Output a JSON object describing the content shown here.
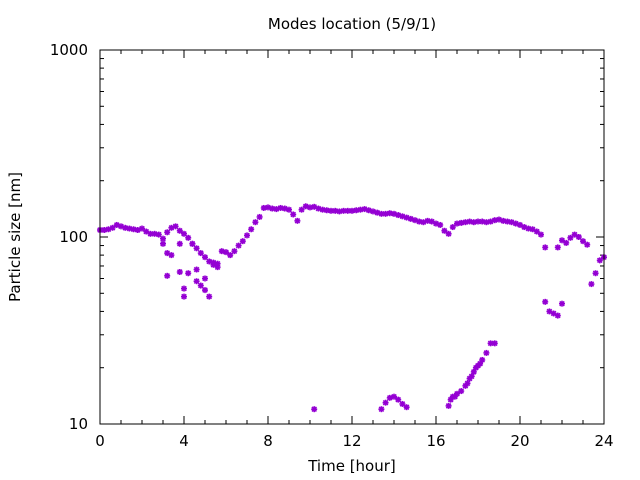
{
  "chart_data": {
    "type": "scatter",
    "title": "Modes location (5/9/1)",
    "xlabel": "Time [hour]",
    "ylabel": "Particle size [nm]",
    "xlim": [
      0,
      24
    ],
    "ylim": [
      10,
      1000
    ],
    "y_scale": "log",
    "x_ticks": [
      0,
      4,
      8,
      12,
      16,
      20,
      24
    ],
    "x_tick_labels": [
      "0",
      "4",
      "8",
      "12",
      "16",
      "20",
      "24"
    ],
    "y_ticks": [
      10,
      100,
      1000
    ],
    "y_tick_labels": [
      "10",
      "100",
      "1000"
    ],
    "grid": false,
    "legend": "none",
    "marker_color": "#9400d3",
    "marker": "asterisk",
    "series": [
      {
        "points": [
          [
            0.0,
            109
          ],
          [
            0.2,
            109
          ],
          [
            0.4,
            110
          ],
          [
            0.6,
            112
          ],
          [
            0.8,
            116
          ],
          [
            1.0,
            114
          ],
          [
            1.2,
            112
          ],
          [
            1.4,
            111
          ],
          [
            1.6,
            110
          ],
          [
            1.8,
            109
          ],
          [
            2.0,
            111
          ],
          [
            2.2,
            107
          ],
          [
            2.4,
            104
          ],
          [
            2.6,
            104
          ],
          [
            2.8,
            103
          ],
          [
            3.0,
            98
          ],
          [
            3.2,
            106
          ],
          [
            3.4,
            112
          ],
          [
            3.6,
            114
          ],
          [
            3.8,
            108
          ],
          [
            4.0,
            104
          ],
          [
            4.2,
            99
          ],
          [
            4.4,
            92
          ],
          [
            4.6,
            87
          ],
          [
            4.8,
            82
          ],
          [
            5.0,
            78
          ],
          [
            5.2,
            74
          ],
          [
            5.4,
            71
          ],
          [
            5.6,
            72
          ],
          [
            5.8,
            84
          ],
          [
            6.0,
            83
          ],
          [
            6.2,
            80
          ],
          [
            6.4,
            84
          ],
          [
            6.6,
            90
          ],
          [
            6.8,
            95
          ],
          [
            7.0,
            102
          ],
          [
            7.2,
            110
          ],
          [
            7.4,
            120
          ],
          [
            7.6,
            128
          ],
          [
            7.8,
            143
          ],
          [
            8.0,
            144
          ],
          [
            8.2,
            142
          ],
          [
            8.4,
            141
          ],
          [
            8.6,
            143
          ],
          [
            8.8,
            142
          ],
          [
            9.0,
            140
          ],
          [
            9.2,
            132
          ],
          [
            9.4,
            122
          ],
          [
            9.6,
            140
          ],
          [
            9.8,
            146
          ],
          [
            10.0,
            144
          ],
          [
            10.2,
            145
          ],
          [
            10.4,
            142
          ],
          [
            10.6,
            140
          ],
          [
            10.8,
            139
          ],
          [
            11.0,
            138
          ],
          [
            11.2,
            138
          ],
          [
            11.4,
            137
          ],
          [
            11.6,
            138
          ],
          [
            11.8,
            138
          ],
          [
            12.0,
            138
          ],
          [
            12.2,
            139
          ],
          [
            12.4,
            140
          ],
          [
            12.6,
            141
          ],
          [
            12.8,
            139
          ],
          [
            13.0,
            137
          ],
          [
            13.2,
            135
          ],
          [
            13.4,
            133
          ],
          [
            13.6,
            133
          ],
          [
            13.8,
            134
          ],
          [
            14.0,
            133
          ],
          [
            14.2,
            131
          ],
          [
            14.4,
            129
          ],
          [
            14.6,
            127
          ],
          [
            14.8,
            125
          ],
          [
            15.0,
            123
          ],
          [
            15.2,
            121
          ],
          [
            15.4,
            120
          ],
          [
            15.6,
            122
          ],
          [
            15.8,
            121
          ],
          [
            16.0,
            118
          ],
          [
            16.2,
            116
          ],
          [
            16.4,
            108
          ],
          [
            16.6,
            104
          ],
          [
            16.8,
            113
          ],
          [
            17.0,
            118
          ],
          [
            17.2,
            119
          ],
          [
            17.4,
            120
          ],
          [
            17.6,
            121
          ],
          [
            17.8,
            120
          ],
          [
            18.0,
            121
          ],
          [
            18.2,
            121
          ],
          [
            18.4,
            120
          ],
          [
            18.6,
            121
          ],
          [
            18.8,
            123
          ],
          [
            19.0,
            124
          ],
          [
            19.2,
            122
          ],
          [
            19.4,
            121
          ],
          [
            19.6,
            120
          ],
          [
            19.8,
            118
          ],
          [
            20.0,
            116
          ],
          [
            20.2,
            113
          ],
          [
            20.4,
            111
          ],
          [
            20.6,
            110
          ],
          [
            20.8,
            107
          ],
          [
            21.0,
            103
          ],
          [
            21.2,
            88
          ],
          [
            21.8,
            88
          ],
          [
            22.0,
            96
          ],
          [
            22.2,
            93
          ],
          [
            22.4,
            99
          ],
          [
            22.6,
            103
          ],
          [
            22.8,
            100
          ],
          [
            23.0,
            95
          ],
          [
            23.2,
            91
          ],
          [
            23.4,
            56
          ],
          [
            23.6,
            64
          ],
          [
            23.8,
            75
          ],
          [
            24.0,
            78
          ],
          [
            3.0,
            92
          ],
          [
            3.2,
            82
          ],
          [
            3.4,
            80
          ],
          [
            3.2,
            62
          ],
          [
            3.8,
            92
          ],
          [
            3.8,
            65
          ],
          [
            4.0,
            53
          ],
          [
            4.0,
            48
          ],
          [
            4.2,
            64
          ],
          [
            4.4,
            92
          ],
          [
            4.6,
            67
          ],
          [
            4.6,
            58
          ],
          [
            4.8,
            55
          ],
          [
            5.0,
            52
          ],
          [
            5.2,
            48
          ],
          [
            5.0,
            60
          ],
          [
            5.4,
            73
          ],
          [
            5.6,
            69
          ],
          [
            21.2,
            45
          ],
          [
            21.4,
            40
          ],
          [
            21.6,
            39
          ],
          [
            21.8,
            38
          ],
          [
            22.0,
            44
          ],
          [
            16.8,
            14
          ],
          [
            17.0,
            14.5
          ],
          [
            17.2,
            15
          ],
          [
            17.4,
            16
          ],
          [
            17.6,
            17.5
          ],
          [
            17.8,
            19
          ],
          [
            18.0,
            20.5
          ],
          [
            18.2,
            22
          ],
          [
            18.4,
            24
          ],
          [
            18.6,
            27
          ],
          [
            18.8,
            27
          ],
          [
            16.6,
            12.5
          ],
          [
            16.7,
            13.5
          ],
          [
            16.9,
            14
          ],
          [
            17.5,
            16.5
          ],
          [
            17.7,
            18
          ],
          [
            17.9,
            20
          ],
          [
            18.1,
            21
          ],
          [
            10.2,
            12
          ],
          [
            13.4,
            12
          ],
          [
            13.6,
            13
          ],
          [
            13.8,
            13.8
          ],
          [
            14.0,
            14
          ],
          [
            14.2,
            13.5
          ],
          [
            14.4,
            12.8
          ],
          [
            14.6,
            12.3
          ]
        ]
      }
    ]
  }
}
